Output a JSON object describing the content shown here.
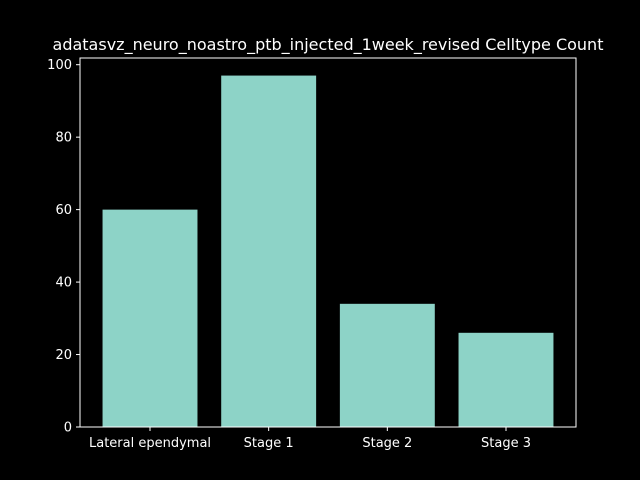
{
  "chart_data": {
    "type": "bar",
    "title": "adatasvz_neuro_noastro_ptb_injected_1week_revised Celltype Count",
    "xlabel": "",
    "ylabel": "",
    "categories": [
      "Lateral ependymal",
      "Stage 1",
      "Stage 2",
      "Stage 3"
    ],
    "values": [
      60,
      97,
      34,
      26
    ],
    "ylim": [
      0,
      101.85
    ],
    "yticks": [
      0,
      20,
      40,
      60,
      80,
      100
    ],
    "grid": false,
    "legend": "none",
    "colors": {
      "background": "#000000",
      "bar": "#8dd3c7",
      "axis": "#ffffff",
      "text": "#ffffff"
    }
  }
}
